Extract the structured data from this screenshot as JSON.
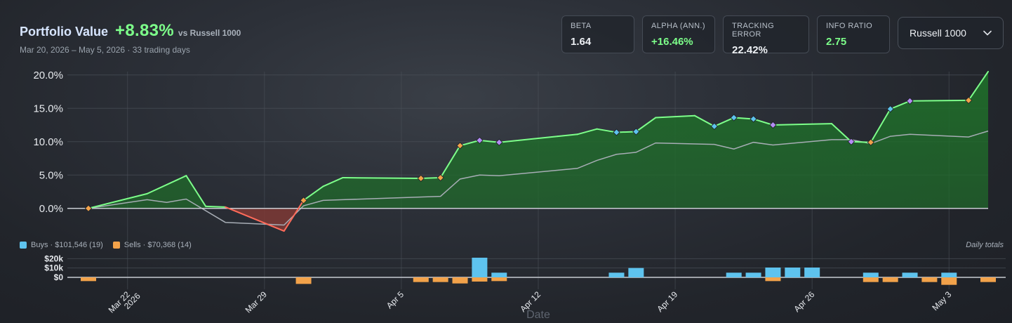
{
  "header": {
    "title": "Portfolio Value",
    "performance": "+8.83%",
    "vs_label": "vs Russell 1000",
    "subtitle": "Mar 20, 2026 – May 5, 2026 · 33 trading days"
  },
  "stats": [
    {
      "label": "BETA",
      "value": "1.64",
      "color": "#eef1f5"
    },
    {
      "label": "ALPHA (ANN.)",
      "value": "+16.46%",
      "color": "#7dff8a"
    },
    {
      "label": "TRACKING ERROR",
      "value": "22.42%",
      "color": "#eef1f5"
    },
    {
      "label": "INFO RATIO",
      "value": "2.75",
      "color": "#7dff8a"
    }
  ],
  "benchmark_select": {
    "value": "Russell 1000",
    "icon": "chevron-down-icon"
  },
  "legend": {
    "buys": "Buys · $101,546 (19)",
    "sells": "Sells · $70,368 (14)",
    "note": "Daily totals"
  },
  "colors": {
    "portfolio_line": "#7dff8a",
    "portfolio_fill": "#1f6b2a",
    "negative_line": "#ff6b5a",
    "negative_fill": "#8a3b35",
    "benchmark_line": "#a7adb5",
    "buy": "#5ec3ee",
    "sell": "#f2a24a",
    "marker_purple": "#b48cf5"
  },
  "chart_data": [
    {
      "type": "line",
      "xlabel": "Date",
      "ylabel": "",
      "ylim": [
        -3.5,
        20.5
      ],
      "yticks": [
        "20.0%",
        "15.0%",
        "10.0%",
        "5.0%",
        "0.0%"
      ],
      "ytick_values": [
        20,
        15,
        10,
        5,
        0
      ],
      "x_ticks": [
        {
          "date": "2026-03-22",
          "label": "Mar 22",
          "sublabel": "2026"
        },
        {
          "date": "2026-03-29",
          "label": "Mar 29"
        },
        {
          "date": "2026-04-05",
          "label": "Apr 5"
        },
        {
          "date": "2026-04-12",
          "label": "Apr 12"
        },
        {
          "date": "2026-04-19",
          "label": "Apr 19"
        },
        {
          "date": "2026-04-26",
          "label": "Apr 26"
        },
        {
          "date": "2026-05-03",
          "label": "May 3"
        }
      ],
      "x_start": "2026-03-20",
      "x_end": "2026-05-05",
      "grid": true,
      "series": [
        {
          "kind": "portfolio",
          "points": [
            [
              "2026-03-20",
              0.0
            ],
            [
              "2026-03-23",
              2.2
            ],
            [
              "2026-03-25",
              4.9
            ],
            [
              "2026-03-26",
              0.3
            ],
            [
              "2026-03-27",
              0.2
            ],
            [
              "2026-03-30",
              -3.4
            ],
            [
              "2026-03-31",
              1.2
            ],
            [
              "2026-04-01",
              3.3
            ],
            [
              "2026-04-02",
              4.6
            ],
            [
              "2026-04-06",
              4.5
            ],
            [
              "2026-04-07",
              4.6
            ],
            [
              "2026-04-08",
              9.4
            ],
            [
              "2026-04-09",
              10.2
            ],
            [
              "2026-04-10",
              9.9
            ],
            [
              "2026-04-13",
              10.8
            ],
            [
              "2026-04-14",
              11.1
            ],
            [
              "2026-04-15",
              11.9
            ],
            [
              "2026-04-16",
              11.4
            ],
            [
              "2026-04-17",
              11.5
            ],
            [
              "2026-04-18",
              13.6
            ],
            [
              "2026-04-20",
              13.9
            ],
            [
              "2026-04-21",
              12.3
            ],
            [
              "2026-04-22",
              13.6
            ],
            [
              "2026-04-23",
              13.4
            ],
            [
              "2026-04-24",
              12.5
            ],
            [
              "2026-04-27",
              12.7
            ],
            [
              "2026-04-28",
              10.0
            ],
            [
              "2026-04-29",
              9.9
            ],
            [
              "2026-04-30",
              14.9
            ],
            [
              "2026-05-01",
              16.1
            ],
            [
              "2026-05-04",
              16.2
            ],
            [
              "2026-05-05",
              20.5
            ]
          ]
        },
        {
          "kind": "benchmark",
          "points": [
            [
              "2026-03-20",
              0.0
            ],
            [
              "2026-03-23",
              1.3
            ],
            [
              "2026-03-24",
              0.9
            ],
            [
              "2026-03-25",
              1.4
            ],
            [
              "2026-03-27",
              -2.1
            ],
            [
              "2026-03-30",
              -2.5
            ],
            [
              "2026-03-31",
              0.4
            ],
            [
              "2026-04-01",
              1.2
            ],
            [
              "2026-04-02",
              1.3
            ],
            [
              "2026-04-07",
              1.8
            ],
            [
              "2026-04-08",
              4.4
            ],
            [
              "2026-04-09",
              5.0
            ],
            [
              "2026-04-10",
              4.9
            ],
            [
              "2026-04-14",
              6.0
            ],
            [
              "2026-04-15",
              7.2
            ],
            [
              "2026-04-16",
              8.1
            ],
            [
              "2026-04-17",
              8.4
            ],
            [
              "2026-04-18",
              9.8
            ],
            [
              "2026-04-21",
              9.6
            ],
            [
              "2026-04-22",
              8.9
            ],
            [
              "2026-04-23",
              9.9
            ],
            [
              "2026-04-24",
              9.5
            ],
            [
              "2026-04-27",
              10.3
            ],
            [
              "2026-04-28",
              10.3
            ],
            [
              "2026-04-29",
              9.7
            ],
            [
              "2026-04-30",
              10.8
            ],
            [
              "2026-05-01",
              11.1
            ],
            [
              "2026-05-04",
              10.7
            ],
            [
              "2026-05-05",
              11.6
            ]
          ]
        }
      ],
      "markers": [
        {
          "date": "2026-03-20",
          "value": 0.0,
          "kind": "sell"
        },
        {
          "date": "2026-03-31",
          "value": 1.2,
          "kind": "sell"
        },
        {
          "date": "2026-04-06",
          "value": 4.5,
          "kind": "sell"
        },
        {
          "date": "2026-04-07",
          "value": 4.6,
          "kind": "sell"
        },
        {
          "date": "2026-04-08",
          "value": 9.4,
          "kind": "sell"
        },
        {
          "date": "2026-04-09",
          "value": 10.2,
          "kind": "both"
        },
        {
          "date": "2026-04-10",
          "value": 9.9,
          "kind": "both"
        },
        {
          "date": "2026-04-16",
          "value": 11.4,
          "kind": "buy"
        },
        {
          "date": "2026-04-17",
          "value": 11.5,
          "kind": "buy"
        },
        {
          "date": "2026-04-21",
          "value": 12.3,
          "kind": "buy"
        },
        {
          "date": "2026-04-22",
          "value": 13.6,
          "kind": "buy"
        },
        {
          "date": "2026-04-23",
          "value": 13.4,
          "kind": "buy"
        },
        {
          "date": "2026-04-24",
          "value": 12.5,
          "kind": "both"
        },
        {
          "date": "2026-04-28",
          "value": 10.0,
          "kind": "both"
        },
        {
          "date": "2026-04-29",
          "value": 9.9,
          "kind": "sell"
        },
        {
          "date": "2026-04-30",
          "value": 14.9,
          "kind": "buy"
        },
        {
          "date": "2026-05-01",
          "value": 16.1,
          "kind": "both"
        },
        {
          "date": "2026-05-04",
          "value": 16.2,
          "kind": "sell"
        }
      ]
    },
    {
      "type": "bar",
      "title": "Daily totals",
      "yticks": [
        "$20k",
        "$10k",
        "$0"
      ],
      "ytick_values": [
        20000,
        10000,
        0
      ],
      "ylim": [
        -8500,
        21000
      ],
      "buys": [
        [
          "2026-04-09",
          21000
        ],
        [
          "2026-04-10",
          5000
        ],
        [
          "2026-04-16",
          5000
        ],
        [
          "2026-04-17",
          10000
        ],
        [
          "2026-04-22",
          5000
        ],
        [
          "2026-04-23",
          5000
        ],
        [
          "2026-04-24",
          10500
        ],
        [
          "2026-04-25",
          10500
        ],
        [
          "2026-04-26",
          10500
        ],
        [
          "2026-04-29",
          5000
        ],
        [
          "2026-05-01",
          5000
        ],
        [
          "2026-05-03",
          5000
        ]
      ],
      "sells": [
        [
          "2026-03-20",
          -4000
        ],
        [
          "2026-03-31",
          -7000
        ],
        [
          "2026-04-06",
          -5000
        ],
        [
          "2026-04-07",
          -5000
        ],
        [
          "2026-04-08",
          -6500
        ],
        [
          "2026-04-09",
          -4500
        ],
        [
          "2026-04-10",
          -4000
        ],
        [
          "2026-04-24",
          -4000
        ],
        [
          "2026-04-29",
          -5000
        ],
        [
          "2026-04-30",
          -5000
        ],
        [
          "2026-05-02",
          -5000
        ],
        [
          "2026-05-03",
          -8000
        ],
        [
          "2026-05-05",
          -5000
        ]
      ]
    }
  ]
}
